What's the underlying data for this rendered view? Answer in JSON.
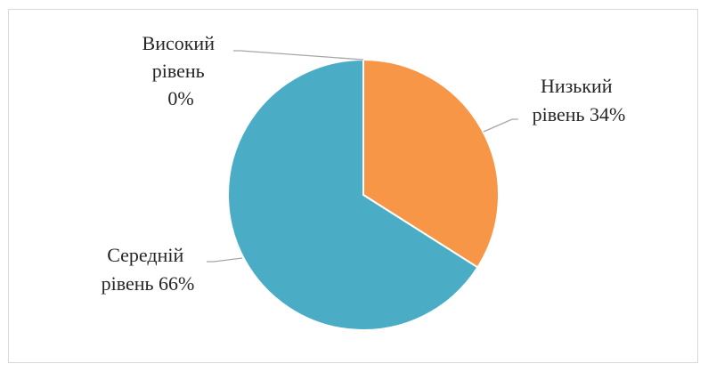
{
  "header_fragment": "",
  "chart_data": {
    "type": "pie",
    "title": "",
    "slices": [
      {
        "line1": "Низький",
        "line2": "рівень 34%",
        "value": 34,
        "color": "#F79646"
      },
      {
        "line1": "Середній",
        "line2": "рівень 66%",
        "value": 66,
        "color": "#4BACC6"
      },
      {
        "line1": "Високий",
        "line2": "рівень",
        "line3": "0%",
        "value": 0,
        "color": "#8064A2"
      }
    ],
    "start": "12 o'clock",
    "direction": "clockwise",
    "legend": "none",
    "data_labels": "outside with leader lines"
  }
}
